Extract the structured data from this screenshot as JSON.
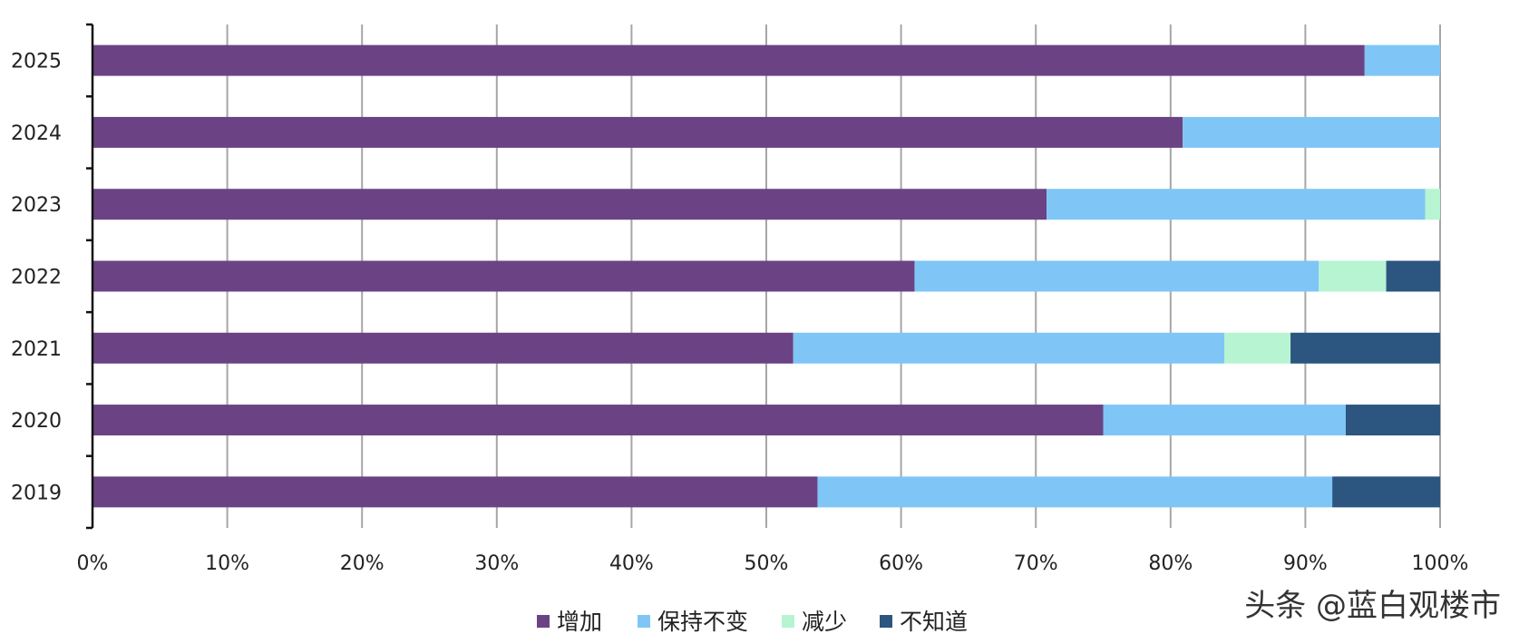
{
  "watermark": "头条 @蓝白观楼市",
  "chart_data": {
    "type": "bar",
    "orientation": "horizontal",
    "stacked": true,
    "normalized_100_percent": true,
    "title": "",
    "xlabel": "",
    "ylabel": "",
    "xlim": [
      0,
      100
    ],
    "x_tick_labels": [
      "0%",
      "10%",
      "20%",
      "30%",
      "40%",
      "50%",
      "60%",
      "70%",
      "80%",
      "90%",
      "100%"
    ],
    "grid": "vertical",
    "legend_position": "bottom",
    "categories": [
      "2025",
      "2024",
      "2023",
      "2022",
      "2021",
      "2020",
      "2019"
    ],
    "series": [
      {
        "name": "增加",
        "color": "#6b4384",
        "values": [
          94.4,
          80.9,
          70.8,
          61.0,
          52.0,
          75.0,
          53.8
        ]
      },
      {
        "name": "保持不变",
        "color": "#7fc6f7",
        "values": [
          5.6,
          19.1,
          28.1,
          30.0,
          32.0,
          18.0,
          38.2
        ]
      },
      {
        "name": "减少",
        "color": "#b6f4d2",
        "values": [
          0,
          0,
          1.1,
          5.0,
          4.9,
          0,
          0
        ]
      },
      {
        "name": "不知道",
        "color": "#2c5580",
        "values": [
          0,
          0,
          0,
          4.0,
          11.1,
          7.0,
          8.0
        ]
      }
    ]
  }
}
